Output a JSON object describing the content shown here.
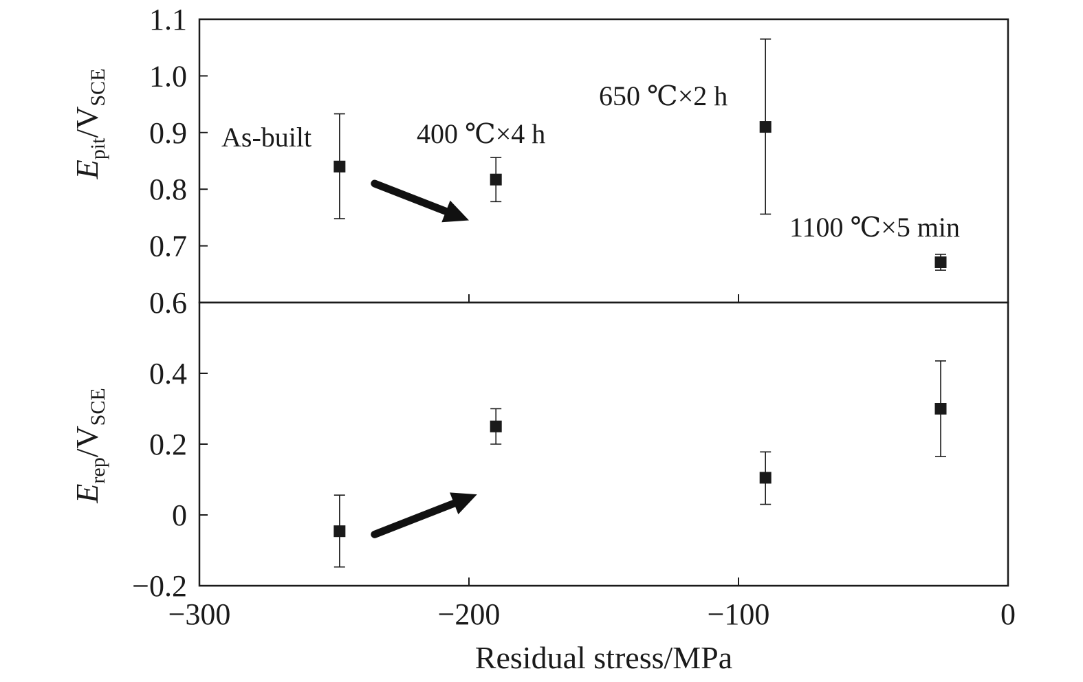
{
  "chart_data": [
    {
      "type": "scatter",
      "panel": "top",
      "ylabel": {
        "main": "E",
        "sub": "pit",
        "sep": "/V",
        "sub2": "SCE"
      },
      "xlim": [
        -300,
        0
      ],
      "ylim": [
        0.6,
        1.1
      ],
      "yticks": [
        "0.6",
        "0.7",
        "0.8",
        "0.9",
        "1.0",
        "1.1"
      ],
      "ytick_values": [
        0.6,
        0.7,
        0.8,
        0.9,
        1.0,
        1.1
      ],
      "points": [
        {
          "x": -248,
          "y": 0.84,
          "err_low": 0.748,
          "err_high": 0.933,
          "label": "As-built"
        },
        {
          "x": -190,
          "y": 0.817,
          "err_low": 0.778,
          "err_high": 0.856,
          "label": "400 ℃×4 h"
        },
        {
          "x": -90,
          "y": 0.91,
          "err_low": 0.756,
          "err_high": 1.065,
          "label": "650 ℃×2 h"
        },
        {
          "x": -25,
          "y": 0.671,
          "err_low": 0.657,
          "err_high": 0.685,
          "label": "1100 ℃×5 min"
        }
      ],
      "arrow": {
        "from": [
          -235,
          0.81
        ],
        "to": [
          -200,
          0.745
        ]
      }
    },
    {
      "type": "scatter",
      "panel": "bottom",
      "ylabel": {
        "main": "E",
        "sub": "rep",
        "sep": "/V",
        "sub2": "SCE"
      },
      "xlabel": "Residual stress/MPa",
      "xlim": [
        -300,
        0
      ],
      "ylim": [
        -0.2,
        0.6
      ],
      "xticks": [
        "−300",
        "−200",
        "−100",
        "0"
      ],
      "xtick_values": [
        -300,
        -200,
        -100,
        0
      ],
      "yticks": [
        "−0.2",
        "0",
        "0.2",
        "0.4"
      ],
      "ytick_values": [
        -0.2,
        0,
        0.2,
        0.4
      ],
      "points": [
        {
          "x": -248,
          "y": -0.046,
          "err_low": -0.147,
          "err_high": 0.056
        },
        {
          "x": -190,
          "y": 0.25,
          "err_low": 0.2,
          "err_high": 0.3
        },
        {
          "x": -90,
          "y": 0.105,
          "err_low": 0.03,
          "err_high": 0.178
        },
        {
          "x": -25,
          "y": 0.3,
          "err_low": 0.165,
          "err_high": 0.435
        }
      ],
      "arrow": {
        "from": [
          -235,
          -0.055
        ],
        "to": [
          -197,
          0.058
        ]
      }
    }
  ]
}
